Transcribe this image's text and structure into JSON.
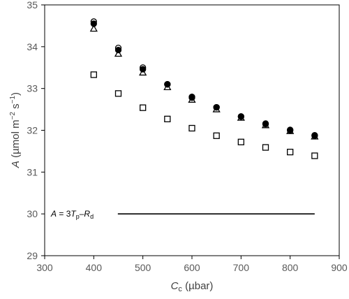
{
  "chart_data": {
    "type": "scatter",
    "xlabel": {
      "main": "C",
      "sub": "c",
      "unit": " (µbar)"
    },
    "ylabel": {
      "main": "A",
      "unit": " (µmol m",
      "sup1": "−2",
      "mid": " s",
      "sup2": "−1",
      "close": ")"
    },
    "xlim": [
      300,
      900
    ],
    "ylim": [
      29,
      35
    ],
    "xticks": [
      300,
      400,
      500,
      600,
      700,
      800,
      900
    ],
    "yticks": [
      29,
      30,
      31,
      32,
      33,
      34,
      35
    ],
    "grid": false,
    "legend": "none",
    "series": [
      {
        "marker": "open-circle",
        "x": [
          400,
          450,
          500,
          550,
          600,
          650,
          700,
          750,
          800,
          850
        ],
        "y": [
          34.6,
          33.97,
          33.5,
          33.1,
          32.78,
          32.55,
          32.33,
          32.15,
          32.0,
          31.87
        ]
      },
      {
        "marker": "filled-circle",
        "x": [
          400,
          450,
          500,
          550,
          600,
          650,
          700,
          750,
          800,
          850
        ],
        "y": [
          34.55,
          33.92,
          33.46,
          33.1,
          32.8,
          32.55,
          32.33,
          32.16,
          32.01,
          31.88
        ]
      },
      {
        "marker": "open-triangle",
        "x": [
          400,
          450,
          500,
          550,
          600,
          650,
          700,
          750,
          800,
          850
        ],
        "y": [
          34.43,
          33.83,
          33.38,
          33.03,
          32.73,
          32.5,
          32.3,
          32.12,
          31.98,
          31.85
        ]
      },
      {
        "marker": "open-square",
        "x": [
          400,
          450,
          500,
          550,
          600,
          650,
          700,
          750,
          800,
          850
        ],
        "y": [
          33.33,
          32.88,
          32.54,
          32.27,
          32.05,
          31.87,
          31.72,
          31.59,
          31.48,
          31.39
        ]
      }
    ],
    "reference_line": {
      "y": 30.0,
      "x_start": 395,
      "x_end": 850,
      "label": {
        "a": "A",
        "eq": " = 3",
        "t": "T",
        "tsub": "p",
        "dash": "–",
        "r": "R",
        "rsub": "d"
      }
    }
  }
}
